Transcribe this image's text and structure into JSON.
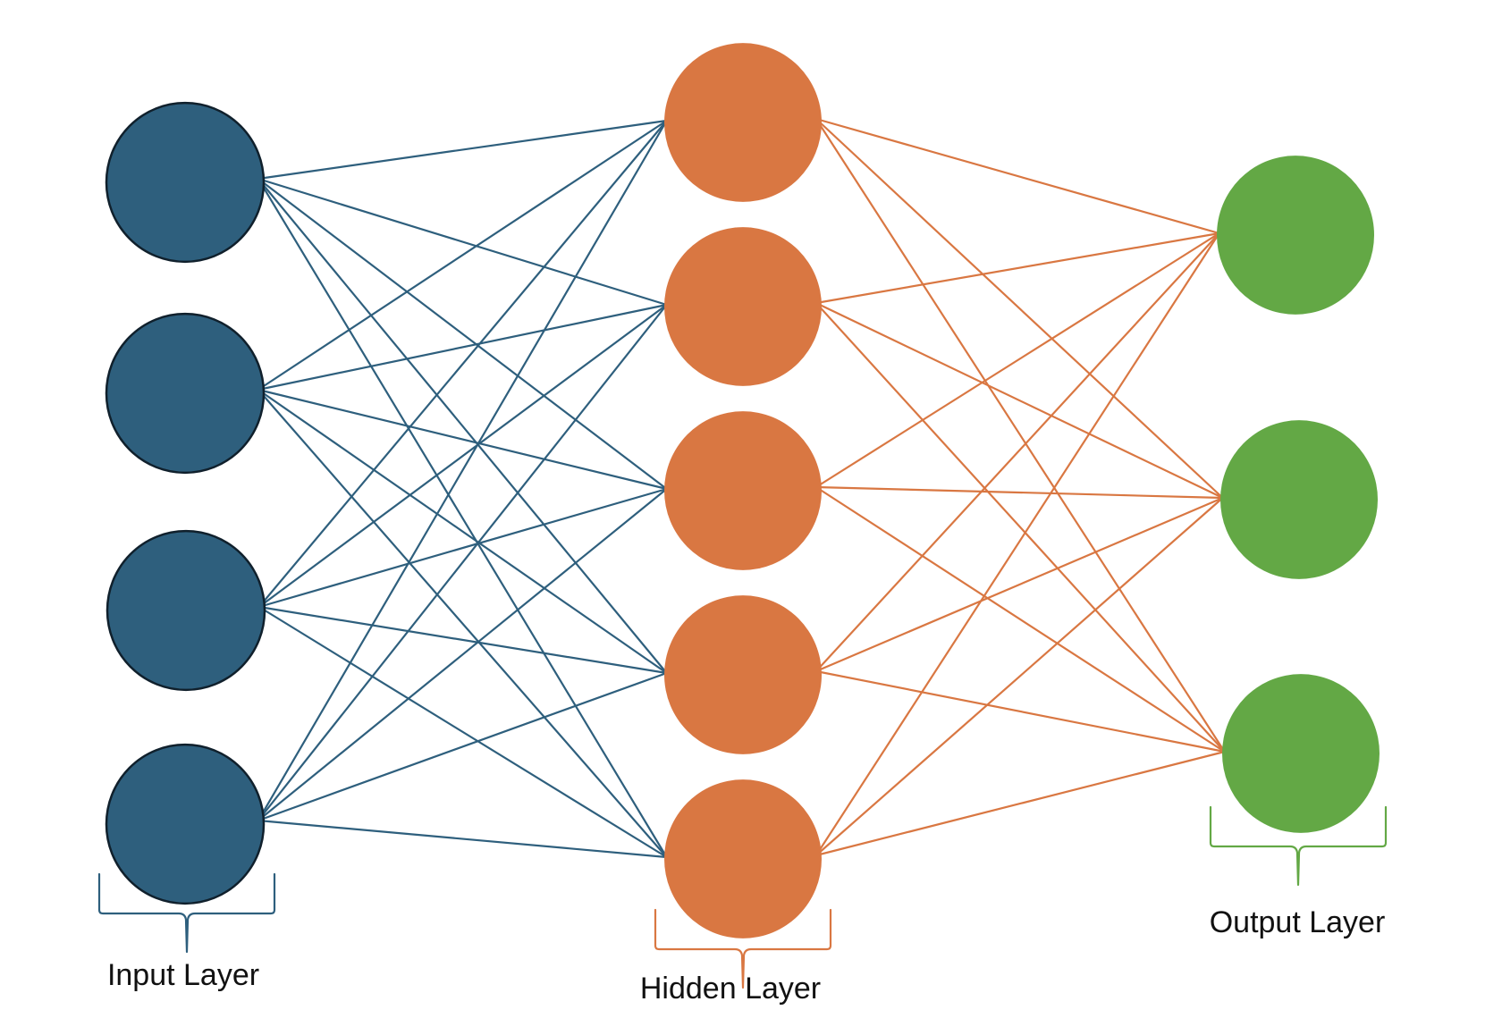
{
  "diagram": {
    "layers": [
      {
        "id": "input",
        "label": "Input Layer",
        "node_count": 4,
        "fill": "#2e5f7d",
        "stroke": "#10202c",
        "edge_color": "#2e5f7d"
      },
      {
        "id": "hidden",
        "label": "Hidden Layer",
        "node_count": 5,
        "fill": "#d97742",
        "stroke": "none",
        "edge_color": "#d97742"
      },
      {
        "id": "output",
        "label": "Output Layer",
        "node_count": 3,
        "fill": "#63a845",
        "stroke": "none",
        "edge_color": "#63a845"
      }
    ]
  }
}
